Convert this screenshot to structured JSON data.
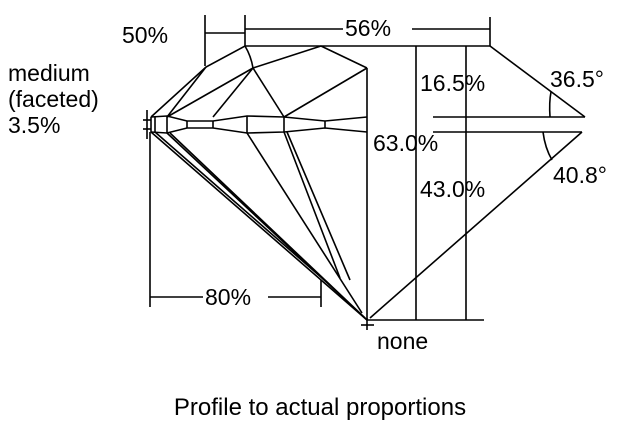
{
  "labels": {
    "table_width": "56%",
    "star_length": "50%",
    "girdle_label": "medium",
    "girdle_type": "(faceted)",
    "girdle_thickness": "3.5%",
    "crown_height": "16.5%",
    "crown_angle": "36.5°",
    "total_depth": "63.0%",
    "pavilion_depth": "43.0%",
    "pavilion_angle": "40.8°",
    "lower_half": "80%",
    "culet": "none"
  },
  "caption": "Profile to actual proportions"
}
